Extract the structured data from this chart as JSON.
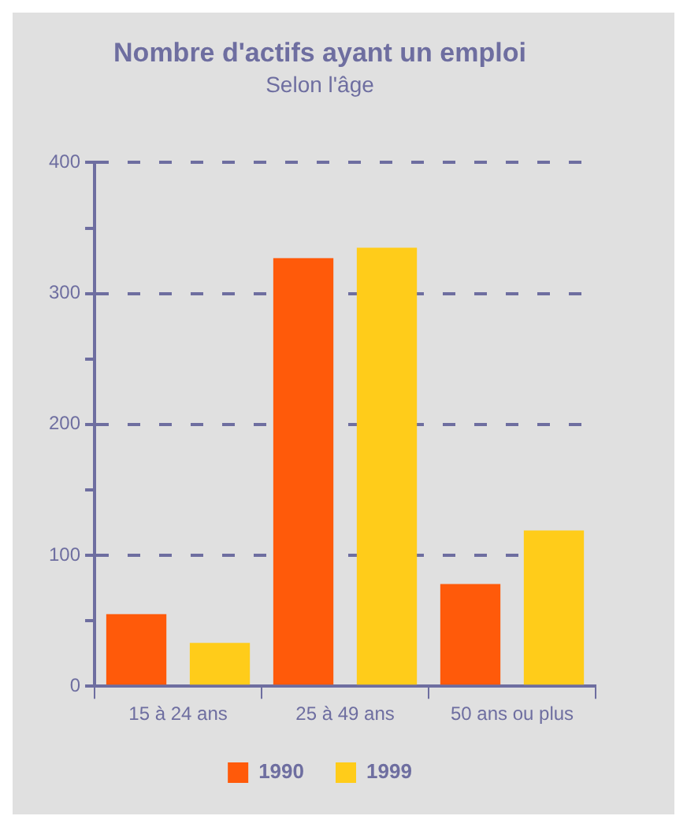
{
  "chart_data": {
    "type": "bar",
    "title": "Nombre d'actifs ayant un emploi",
    "subtitle": "Selon l'âge",
    "categories": [
      "15 à 24 ans",
      "25 à 49 ans",
      "50 ans ou plus"
    ],
    "series": [
      {
        "name": "1990",
        "color": "#ff5a0a",
        "values": [
          55,
          327,
          78
        ]
      },
      {
        "name": "1999",
        "color": "#ffcc1a",
        "values": [
          33,
          335,
          119
        ]
      }
    ],
    "ylim": [
      0,
      400
    ],
    "yticks": [
      0,
      {
        "value": 50,
        "label": null
      },
      100,
      {
        "value": 150,
        "label": null
      },
      200,
      {
        "value": 250,
        "label": null
      },
      300,
      {
        "value": 350,
        "label": null
      },
      400
    ],
    "grid": "y",
    "legend": "bottom"
  }
}
